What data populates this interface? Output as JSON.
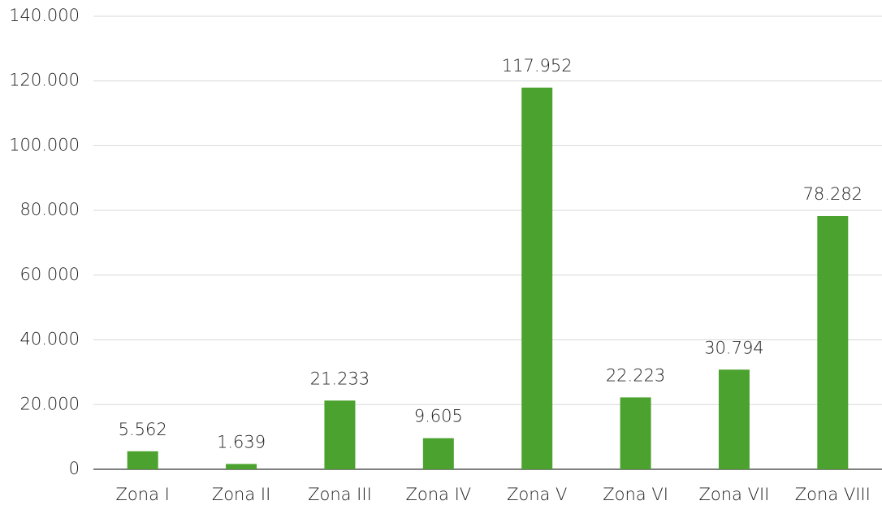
{
  "chart_data": {
    "type": "bar",
    "categories": [
      "Zona I",
      "Zona II",
      "Zona III",
      "Zona IV",
      "Zona V",
      "Zona VI",
      "Zona VII",
      "Zona VIII"
    ],
    "values": [
      5562,
      1639,
      21233,
      9605,
      117952,
      22223,
      30794,
      78282
    ],
    "value_labels": [
      "5.562",
      "1.639",
      "21.233",
      "9.605",
      "117.952",
      "22.223",
      "30.794",
      "78.282"
    ],
    "color": "#4ca22f",
    "ylim": [
      0,
      140000
    ],
    "yticks": [
      0,
      {
        "value": 20000,
        "label": "20.000"
      },
      {
        "value": 40000,
        "label": "40.000"
      },
      {
        "value": 60000,
        "label": "60 000"
      },
      {
        "value": 80000,
        "label": "80.000"
      },
      {
        "value": 100000,
        "label": "100.000"
      },
      {
        "value": 120000,
        "label": "120.000"
      },
      {
        "value": 140000,
        "label": "140.000"
      }
    ],
    "grid": true
  }
}
